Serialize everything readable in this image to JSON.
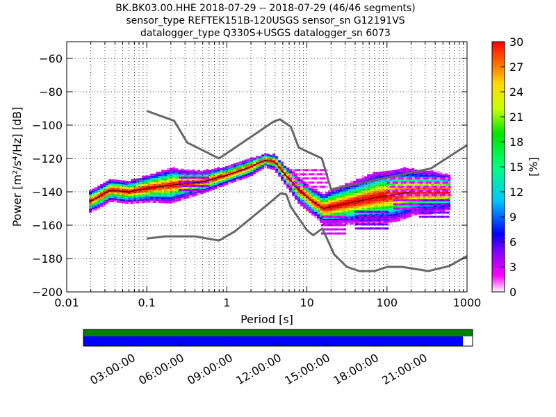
{
  "title": {
    "line1": "BK.BK03.00.HHE   2018-07-29 -- 2018-07-29  (46/46 segments)",
    "line2": "sensor_type REFTEK151B-120USGS sensor_sn G12191VS",
    "line3": "datalogger_type Q330S+USGS datalogger_sn 6073"
  },
  "chart_data": {
    "type": "heatmap",
    "xlabel": "Period [s]",
    "ylabel": "Power [m²/s⁴/Hz] [dB]",
    "xscale": "log",
    "xlim": [
      0.01,
      1000
    ],
    "ylim": [
      -200,
      -50
    ],
    "x_ticks": [
      {
        "v": 0.01,
        "label": "0.01"
      },
      {
        "v": 0.1,
        "label": "0.1"
      },
      {
        "v": 1,
        "label": "1"
      },
      {
        "v": 10,
        "label": "10"
      },
      {
        "v": 100,
        "label": "100"
      },
      {
        "v": 1000,
        "label": "1000"
      }
    ],
    "y_ticks": [
      {
        "v": -60,
        "label": "−60"
      },
      {
        "v": -80,
        "label": "−80"
      },
      {
        "v": -100,
        "label": "−100"
      },
      {
        "v": -120,
        "label": "−120"
      },
      {
        "v": -140,
        "label": "−140"
      },
      {
        "v": -160,
        "label": "−160"
      },
      {
        "v": -180,
        "label": "−180"
      },
      {
        "v": -200,
        "label": "−200"
      }
    ],
    "grid": true,
    "noise_models": {
      "high": [
        [
          0.1,
          -91.5
        ],
        [
          0.22,
          -97.4
        ],
        [
          0.32,
          -110.5
        ],
        [
          0.8,
          -120
        ],
        [
          3.8,
          -98
        ],
        [
          4.6,
          -96.5
        ],
        [
          6.3,
          -101
        ],
        [
          7.9,
          -113.5
        ],
        [
          15.4,
          -120
        ],
        [
          20,
          -138.5
        ],
        [
          354,
          -126
        ],
        [
          1000,
          -112
        ]
      ],
      "low": [
        [
          0.1,
          -168
        ],
        [
          0.17,
          -166.7
        ],
        [
          0.4,
          -166.7
        ],
        [
          0.8,
          -169.2
        ],
        [
          1.26,
          -163.7
        ],
        [
          3.16,
          -148
        ],
        [
          4.7,
          -141
        ],
        [
          5.5,
          -141.5
        ],
        [
          6.3,
          -149
        ],
        [
          10,
          -163
        ],
        [
          12,
          -166
        ],
        [
          15.6,
          -162
        ],
        [
          21.9,
          -177.5
        ],
        [
          31.6,
          -185
        ],
        [
          45,
          -187.5
        ],
        [
          70,
          -187.5
        ],
        [
          101,
          -185
        ],
        [
          154,
          -185
        ],
        [
          328,
          -187.5
        ],
        [
          600,
          -184.5
        ],
        [
          1000,
          -178.5
        ]
      ]
    },
    "mean_curve": [
      [
        0.019,
        -146
      ],
      [
        0.025,
        -143
      ],
      [
        0.035,
        -139
      ],
      [
        0.06,
        -140
      ],
      [
        0.1,
        -138
      ],
      [
        0.2,
        -136
      ],
      [
        0.5,
        -134
      ],
      [
        1,
        -130
      ],
      [
        2,
        -125
      ],
      [
        3,
        -121
      ],
      [
        4,
        -122
      ],
      [
        5,
        -128
      ],
      [
        8,
        -139
      ],
      [
        12,
        -146
      ],
      [
        16,
        -150
      ],
      [
        25,
        -148
      ],
      [
        40,
        -146
      ],
      [
        80,
        -143
      ],
      [
        120,
        -142
      ],
      [
        200,
        -140
      ]
    ],
    "spread": [
      [
        0.019,
        5
      ],
      [
        0.05,
        5
      ],
      [
        0.1,
        6
      ],
      [
        0.2,
        8
      ],
      [
        0.5,
        5
      ],
      [
        1,
        4
      ],
      [
        2,
        4
      ],
      [
        3,
        3
      ],
      [
        5,
        4
      ],
      [
        8,
        6
      ],
      [
        12,
        6
      ],
      [
        20,
        8
      ],
      [
        40,
        10
      ],
      [
        80,
        12
      ],
      [
        150,
        12
      ],
      [
        250,
        10
      ],
      [
        350,
        10
      ],
      [
        600,
        8
      ]
    ],
    "psd_bands": [
      {
        "x1": 6,
        "x2": 18,
        "y1": -137,
        "y2": -126,
        "pct": 2
      },
      {
        "x1": 15,
        "x2": 30,
        "y1": -165,
        "y2": -153,
        "pct": 3
      },
      {
        "x1": 40,
        "x2": 100,
        "y1": -162,
        "y2": -150,
        "pct": 5
      },
      {
        "x1": 100,
        "x2": 600,
        "y1": -142,
        "y2": -132,
        "pct": 2
      },
      {
        "x1": 120,
        "x2": 350,
        "y1": -150,
        "y2": -144,
        "pct": 3
      },
      {
        "x1": 250,
        "x2": 600,
        "y1": -155,
        "y2": -145,
        "pct": 5
      },
      {
        "x1": 0.25,
        "x2": 0.6,
        "y1": -139,
        "y2": -129,
        "pct": 4
      }
    ],
    "colorbar": {
      "label": "[%]",
      "range": [
        0,
        30
      ],
      "ticks": [
        {
          "v": 0,
          "label": "0"
        },
        {
          "v": 3,
          "label": "3"
        },
        {
          "v": 6,
          "label": "6"
        },
        {
          "v": 9,
          "label": "9"
        },
        {
          "v": 12,
          "label": "12"
        },
        {
          "v": 15,
          "label": "15"
        },
        {
          "v": 18,
          "label": "18"
        },
        {
          "v": 21,
          "label": "21"
        },
        {
          "v": 24,
          "label": "24"
        },
        {
          "v": 27,
          "label": "27"
        },
        {
          "v": 30,
          "label": "30"
        }
      ]
    },
    "timeline": {
      "data_coverage_fraction": 1.0,
      "psd_coverage_fraction": 0.975,
      "ticks": [
        "03:00:00",
        "06:00:00",
        "09:00:00",
        "12:00:00",
        "15:00:00",
        "18:00:00",
        "21:00:00"
      ],
      "colors": {
        "data": "#008000",
        "psd": "#0000ff"
      }
    }
  }
}
